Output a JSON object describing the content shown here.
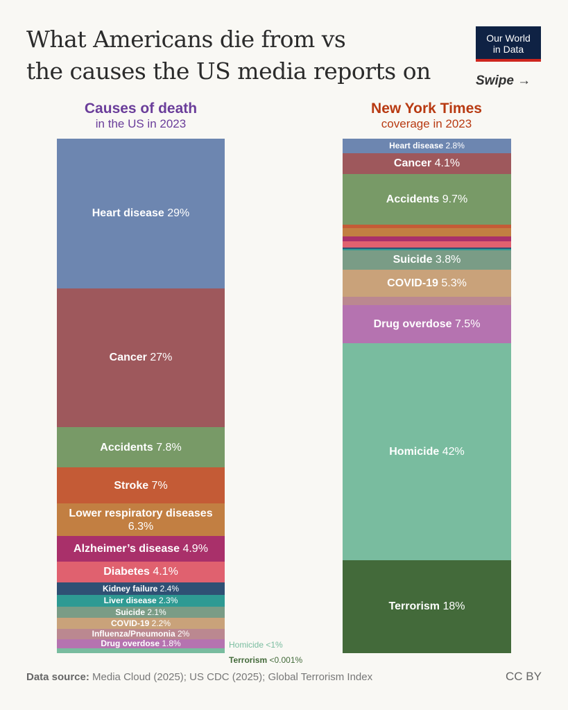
{
  "header": {
    "title_line1": "What Americans die from vs",
    "title_line2": "the causes the US media reports on",
    "logo": "Our World in Data",
    "logo_line1": "Our World",
    "logo_line2": "in Data",
    "swipe": "Swipe →"
  },
  "chart_data": [
    {
      "type": "bar",
      "stacked": true,
      "unit": "%",
      "title": "Causes of death",
      "subtitle": "in the US in 2023",
      "title_color": "#6a3d9a",
      "series": [
        {
          "name": "Heart disease",
          "value": 29,
          "label": "29%",
          "color": "#6d86b0"
        },
        {
          "name": "Cancer",
          "value": 27,
          "label": "27%",
          "color": "#9e585c"
        },
        {
          "name": "Accidents",
          "value": 7.8,
          "label": "7.8%",
          "color": "#789a67"
        },
        {
          "name": "Stroke",
          "value": 7,
          "label": "7%",
          "color": "#c45b36"
        },
        {
          "name": "Lower respiratory diseases",
          "value": 6.3,
          "label": "6.3%",
          "color": "#c27f42"
        },
        {
          "name": "Alzheimer’s disease",
          "value": 4.9,
          "label": "4.9%",
          "color": "#a9306a"
        },
        {
          "name": "Diabetes",
          "value": 4.1,
          "label": "4.1%",
          "color": "#e0616f"
        },
        {
          "name": "Kidney failure",
          "value": 2.4,
          "label": "2.4%",
          "color": "#2f5074"
        },
        {
          "name": "Liver disease",
          "value": 2.3,
          "label": "2.3%",
          "color": "#2e9a93"
        },
        {
          "name": "Suicide",
          "value": 2.1,
          "label": "2.1%",
          "color": "#7a9c86"
        },
        {
          "name": "COVID-19",
          "value": 2.2,
          "label": "2.2%",
          "color": "#c9a27a"
        },
        {
          "name": "Influenza/Pneumonia",
          "value": 2,
          "label": "2%",
          "color": "#bb8890"
        },
        {
          "name": "Drug overdose",
          "value": 1.8,
          "label": "1.8%",
          "color": "#b573b0"
        },
        {
          "name": "Homicide",
          "value": 0.9,
          "label": "<1%",
          "color": "#79bc9f",
          "external": true
        },
        {
          "name": "Terrorism",
          "value": 0.001,
          "label": "<0.001%",
          "color": "#436a3a",
          "external": true
        }
      ]
    },
    {
      "type": "bar",
      "stacked": true,
      "unit": "%",
      "title": "New York Times",
      "subtitle": "coverage in 2023",
      "title_color": "#b83a12",
      "series": [
        {
          "name": "Heart disease",
          "value": 2.8,
          "label": "2.8%",
          "color": "#6d86b0"
        },
        {
          "name": "Cancer",
          "value": 4.1,
          "label": "4.1%",
          "color": "#9e585c"
        },
        {
          "name": "Accidents",
          "value": 9.7,
          "label": "9.7%",
          "color": "#789a67"
        },
        {
          "name": "Stroke",
          "value": 0.8,
          "color": "#c45b36"
        },
        {
          "name": "Lower respiratory diseases",
          "value": 1.5,
          "color": "#c27f42"
        },
        {
          "name": "Alzheimer’s disease",
          "value": 1.0,
          "color": "#a9306a"
        },
        {
          "name": "Diabetes",
          "value": 1.2,
          "color": "#e0616f"
        },
        {
          "name": "Kidney failure",
          "value": 0.2,
          "color": "#2f5074"
        },
        {
          "name": "Liver disease",
          "value": 0.3,
          "color": "#2e9a93"
        },
        {
          "name": "Suicide",
          "value": 3.8,
          "label": "3.8%",
          "color": "#7a9c86"
        },
        {
          "name": "COVID-19",
          "value": 5.3,
          "label": "5.3%",
          "color": "#c9a27a"
        },
        {
          "name": "Influenza/Pneumonia",
          "value": 1.5,
          "color": "#bb8890"
        },
        {
          "name": "Drug overdose",
          "value": 7.5,
          "label": "7.5%",
          "color": "#b573b0"
        },
        {
          "name": "Homicide",
          "value": 42,
          "label": "42%",
          "color": "#79bc9f"
        },
        {
          "name": "Terrorism",
          "value": 18,
          "label": "18%",
          "color": "#436a3a"
        }
      ]
    }
  ],
  "footer": {
    "source_label": "Data source:",
    "source_text": " Media Cloud (2025); US CDC (2025); Global Terrorism Index",
    "license": "CC BY"
  }
}
